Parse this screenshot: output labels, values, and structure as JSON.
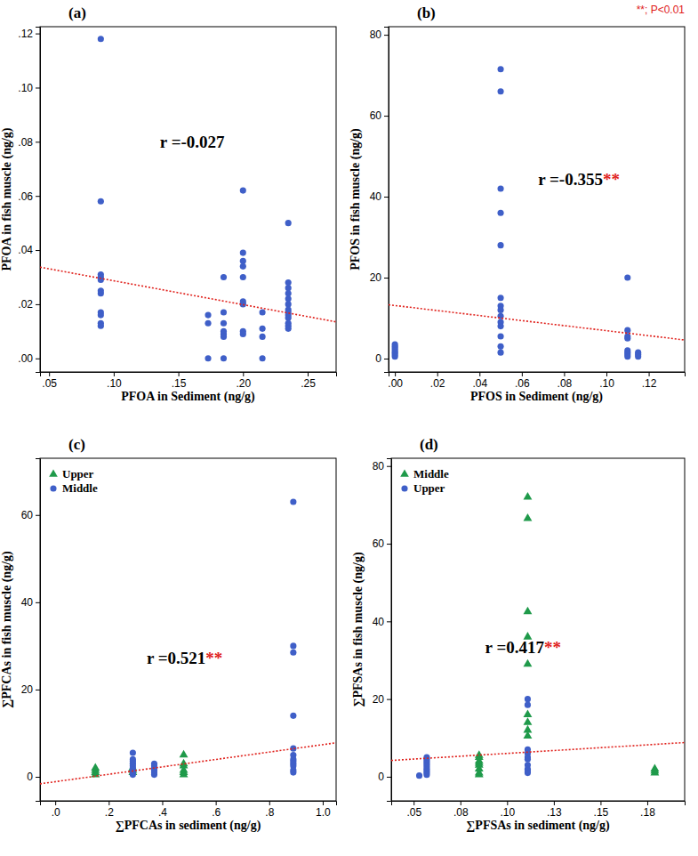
{
  "chart_data": [
    {
      "type": "scatter",
      "title": "(a)",
      "x_label": "PFOA in Sediment (ng/g)",
      "y_label": "PFOA in fish muscle (ng/g)",
      "xlim": [
        0.043,
        0.272
      ],
      "ylim": [
        -0.005,
        0.1225
      ],
      "xticks": [
        {
          "value": 0.05,
          "label": ".05"
        },
        {
          "value": 0.1,
          "label": ".10"
        },
        {
          "value": 0.15,
          "label": ".15"
        },
        {
          "value": 0.2,
          "label": ".20"
        },
        {
          "value": 0.25,
          "label": ".25"
        }
      ],
      "yticks": [
        {
          "value": 0,
          "label": ".00"
        },
        {
          "value": 0.02,
          "label": ".02"
        },
        {
          "value": 0.04,
          "label": ".04"
        },
        {
          "value": 0.06,
          "label": ".06"
        },
        {
          "value": 0.08,
          "label": ".08"
        },
        {
          "value": 0.1,
          "label": ".10"
        },
        {
          "value": 0.12,
          "label": ".12"
        }
      ],
      "series": [
        {
          "color": "#3f5fc8",
          "marker": "circle",
          "x": [
            0.09,
            0.09,
            0.09,
            0.09,
            0.09,
            0.09,
            0.09,
            0.09,
            0.09,
            0.09,
            0.09,
            0.173,
            0.173,
            0.173,
            0.185,
            0.185,
            0.185,
            0.185,
            0.185,
            0.185,
            0.185,
            0.2,
            0.2,
            0.2,
            0.2,
            0.2,
            0.2,
            0.2,
            0.2,
            0.2,
            0.215,
            0.215,
            0.215,
            0.215,
            0.235,
            0.235,
            0.235,
            0.235,
            0.235,
            0.235,
            0.235,
            0.235,
            0.235,
            0.235,
            0.235,
            0.235,
            0.235
          ],
          "values": [
            0.118,
            0.058,
            0.031,
            0.03,
            0.029,
            0.025,
            0.024,
            0.017,
            0.016,
            0.013,
            0.012,
            0.016,
            0.013,
            0.0,
            0.03,
            0.017,
            0.013,
            0.01,
            0.009,
            0.008,
            0.0,
            0.062,
            0.039,
            0.036,
            0.034,
            0.03,
            0.021,
            0.02,
            0.01,
            0.009,
            0.017,
            0.011,
            0.008,
            0.0,
            0.05,
            0.028,
            0.026,
            0.024,
            0.022,
            0.02,
            0.018,
            0.017,
            0.016,
            0.015,
            0.013,
            0.012,
            0.011
          ]
        }
      ],
      "trend": {
        "x": [
          0.043,
          0.272
        ],
        "values": [
          0.0337,
          0.0135
        ]
      },
      "annotation": "r =-0.027"
    },
    {
      "type": "scatter",
      "title": "(b)",
      "x_label": "PFOS in Sediment (ng/g)",
      "y_label": "PFOS in fish muscle (ng/g)",
      "xlim": [
        -0.003,
        0.137
      ],
      "ylim": [
        -3.3,
        82
      ],
      "xticks": [
        {
          "value": 0,
          "label": ".00"
        },
        {
          "value": 0.02,
          "label": ".02"
        },
        {
          "value": 0.04,
          "label": ".04"
        },
        {
          "value": 0.06,
          "label": ".06"
        },
        {
          "value": 0.08,
          "label": ".08"
        },
        {
          "value": 0.1,
          "label": ".10"
        },
        {
          "value": 0.12,
          "label": ".12"
        }
      ],
      "yticks": [
        0,
        20,
        40,
        60,
        80
      ],
      "series": [
        {
          "color": "#3f5fc8",
          "marker": "circle",
          "x": [
            0,
            0,
            0,
            0,
            0,
            0,
            0,
            0.05,
            0.05,
            0.05,
            0.05,
            0.05,
            0.05,
            0.05,
            0.05,
            0.05,
            0.05,
            0.05,
            0.05,
            0.05,
            0.05,
            0.11,
            0.11,
            0.11,
            0.11,
            0.11,
            0.11,
            0.11,
            0.11,
            0.115,
            0.115,
            0.115
          ],
          "values": [
            0.5,
            1,
            1.5,
            2,
            2.5,
            3,
            3.5,
            71.5,
            66,
            42,
            36,
            28,
            15,
            13,
            12,
            10.5,
            9,
            8,
            5.5,
            3,
            1.5,
            20,
            7,
            5.5,
            5,
            2,
            1.5,
            1,
            0.5,
            1.5,
            1,
            0.5
          ]
        }
      ],
      "trend": {
        "x": [
          -0.003,
          0.137
        ],
        "values": [
          13.3,
          4.6
        ]
      },
      "annotation": "r =-0.355",
      "annotation_mark": "**",
      "note": "**; P<0.01"
    },
    {
      "type": "scatter",
      "title": "(c)",
      "x_label": "∑PFCAs in  sediment (ng/g)",
      "y_label": "∑PFCAs in fish muscle (ng/g)",
      "xlim": [
        -0.057,
        1.05
      ],
      "ylim": [
        -5.5,
        73
      ],
      "xticks": [
        {
          "value": 0,
          "label": ".0"
        },
        {
          "value": 0.2,
          "label": ".2"
        },
        {
          "value": 0.4,
          "label": ".4"
        },
        {
          "value": 0.6,
          "label": ".6"
        },
        {
          "value": 0.8,
          "label": ".8"
        },
        {
          "value": 1.0,
          "label": "1.0"
        }
      ],
      "yticks": [
        0,
        20,
        40,
        60
      ],
      "legend": "upper left",
      "series": [
        {
          "name": "Upper",
          "color": "#1f9a4a",
          "marker": "triangle",
          "x": [
            0.15,
            0.15,
            0.15,
            0.15,
            0.29,
            0.29,
            0.29,
            0.48,
            0.48,
            0.48,
            0.48,
            0.48,
            0.48
          ],
          "values": [
            0.5,
            1,
            1.5,
            2,
            1,
            1.5,
            2,
            0.5,
            1,
            1.5,
            2.5,
            3,
            5
          ]
        },
        {
          "name": "Middle",
          "color": "#3f5fc8",
          "marker": "circle",
          "x": [
            0.29,
            0.29,
            0.29,
            0.29,
            0.29,
            0.29,
            0.29,
            0.29,
            0.29,
            0.37,
            0.37,
            0.37,
            0.37,
            0.37,
            0.37,
            0.89,
            0.89,
            0.89,
            0.89,
            0.89,
            0.89,
            0.89,
            0.89,
            0.89,
            0.89,
            0.89,
            0.89
          ],
          "values": [
            0.5,
            1,
            1.5,
            2,
            2.5,
            3,
            3.5,
            4,
            5.5,
            0.5,
            1,
            1.5,
            2,
            2.5,
            3,
            63,
            30,
            28.5,
            14,
            6.5,
            5,
            4,
            3.5,
            3,
            2.5,
            1.5,
            1
          ]
        }
      ],
      "trend": {
        "x": [
          -0.057,
          1.05
        ],
        "values": [
          -1.6,
          7.8
        ]
      },
      "annotation": "r =0.521",
      "annotation_mark": "**"
    },
    {
      "type": "scatter",
      "title": "(d)",
      "x_label": "∑PFSAs in sediment (ng/g)",
      "y_label": "∑PFSAs in fish muscle (ng/g)",
      "xlim": [
        0.038,
        0.195
      ],
      "ylim": [
        -6.2,
        82
      ],
      "xticks": [
        {
          "value": 0.05,
          "label": ".05"
        },
        {
          "value": 0.075,
          "label": ".08"
        },
        {
          "value": 0.1,
          "label": ".10"
        },
        {
          "value": 0.125,
          "label": ".13"
        },
        {
          "value": 0.15,
          "label": ".15"
        },
        {
          "value": 0.175,
          "label": ".18"
        }
      ],
      "yticks": [
        0,
        20,
        40,
        60,
        80
      ],
      "legend": "upper left",
      "series": [
        {
          "name": "Middle",
          "color": "#1f9a4a",
          "marker": "triangle",
          "x": [
            0.085,
            0.085,
            0.085,
            0.085,
            0.085,
            0.085,
            0.085,
            0.085,
            0.111,
            0.111,
            0.111,
            0.111,
            0.111,
            0.111,
            0.111,
            0.111,
            0.111,
            0.179,
            0.179,
            0.179
          ],
          "values": [
            0.5,
            1,
            2,
            3,
            3.5,
            4,
            5,
            5.5,
            72,
            66.5,
            42.5,
            36,
            29,
            16,
            14,
            12,
            10.5,
            1,
            1.5,
            2
          ]
        },
        {
          "name": "Upper",
          "color": "#3f5fc8",
          "marker": "circle",
          "x": [
            0.053,
            0.057,
            0.057,
            0.057,
            0.057,
            0.057,
            0.057,
            0.057,
            0.057,
            0.057,
            0.057,
            0.111,
            0.111,
            0.111,
            0.111,
            0.111,
            0.111,
            0.111,
            0.111,
            0.111,
            0.111
          ],
          "values": [
            0.3,
            0.5,
            1,
            1.5,
            2,
            2.5,
            3,
            3.5,
            4,
            4.5,
            5,
            20,
            18.5,
            7,
            6,
            5,
            4.5,
            3,
            2,
            1.5,
            1
          ]
        }
      ],
      "trend": {
        "x": [
          0.038,
          0.195
        ],
        "values": [
          4.2,
          8.8
        ]
      },
      "annotation": "r =0.417",
      "annotation_mark": "**"
    }
  ]
}
